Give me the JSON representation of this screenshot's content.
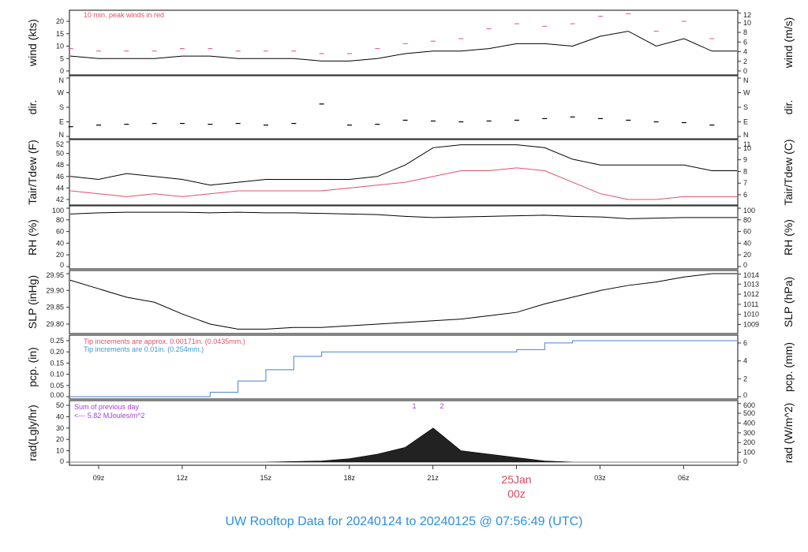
{
  "title": "UW Rooftop Data for 20240124  to  20240125 @ 07:56:49  (UTC)",
  "colors": {
    "title": "#2b8fe0",
    "date_marker": "#d9475e",
    "peak": "#e0506a",
    "dew": "#e0506a",
    "pcp_line": "#4a7fd0",
    "pcp_note2": "#3a9ae0",
    "rad_note": "#a040e0",
    "line": "#000000"
  },
  "x_axis": {
    "ticks": [
      "09z",
      "12z",
      "15z",
      "18z",
      "21z",
      "00z",
      "03z",
      "06z"
    ],
    "date_marker": {
      "day": "25Jan",
      "hour": "00z"
    }
  },
  "chart_data": [
    {
      "type": "line",
      "panel": "wind",
      "ylabel": "wind (kts)",
      "ylabel_right": "wind (m/s)",
      "ylim": [
        0,
        20
      ],
      "yticks": [
        "0",
        "5",
        "10",
        "15",
        "20"
      ],
      "yticks_right": [
        "0",
        "2",
        "4",
        "6",
        "8",
        "10",
        "12"
      ],
      "annotation": "10 min. peak winds in red",
      "x": [
        "08z",
        "09z",
        "10z",
        "11z",
        "12z",
        "13z",
        "14z",
        "15z",
        "16z",
        "17z",
        "18z",
        "19z",
        "20z",
        "21z",
        "22z",
        "23z",
        "00z",
        "01z",
        "02z",
        "03z",
        "04z",
        "05z",
        "06z",
        "07z"
      ],
      "series": [
        {
          "values": [
            6,
            5,
            5,
            5,
            6,
            6,
            5,
            5,
            5,
            4,
            4,
            5,
            7,
            8,
            8,
            9,
            11,
            11,
            10,
            14,
            16,
            10,
            13,
            8
          ]
        },
        {
          "values": [
            9,
            8,
            8,
            8,
            9,
            9,
            8,
            8,
            8,
            7,
            7,
            9,
            11,
            12,
            13,
            17,
            19,
            18,
            19,
            22,
            23,
            16,
            20,
            13
          ]
        }
      ]
    },
    {
      "type": "scatter",
      "panel": "dir",
      "ylabel": "dir.",
      "ylabel_right": "dir.",
      "ylim": [
        0,
        360
      ],
      "yticks": [
        "N",
        "E",
        "S",
        "W",
        "N"
      ],
      "x": [
        "08z",
        "09z",
        "10z",
        "11z",
        "12z",
        "13z",
        "14z",
        "15z",
        "16z",
        "17z",
        "18z",
        "19z",
        "20z",
        "21z",
        "22z",
        "23z",
        "00z",
        "01z",
        "02z",
        "03z",
        "04z",
        "05z",
        "06z",
        "07z"
      ],
      "values": [
        60,
        70,
        75,
        80,
        80,
        75,
        80,
        70,
        80,
        200,
        70,
        75,
        100,
        95,
        90,
        95,
        100,
        110,
        120,
        110,
        100,
        90,
        85,
        70
      ]
    },
    {
      "type": "line",
      "panel": "temperature",
      "ylabel": "Tair/Tdew (F)",
      "ylabel_right": "Tair/Tdew (C)",
      "ylim": [
        42,
        52
      ],
      "yticks": [
        "42",
        "44",
        "46",
        "48",
        "50",
        "52"
      ],
      "yticks_right": [
        "6",
        "7",
        "8",
        "9",
        "10",
        "11"
      ],
      "x": [
        "08z",
        "09z",
        "10z",
        "11z",
        "12z",
        "13z",
        "14z",
        "15z",
        "16z",
        "17z",
        "18z",
        "19z",
        "20z",
        "21z",
        "22z",
        "23z",
        "00z",
        "01z",
        "02z",
        "03z",
        "04z",
        "05z",
        "06z",
        "07z"
      ],
      "series": [
        {
          "values": [
            46,
            45.5,
            46.5,
            46,
            45.5,
            44.5,
            45,
            45.5,
            45.5,
            45.5,
            45.5,
            46,
            48,
            51,
            51.5,
            51.5,
            51.5,
            51,
            49,
            48,
            48,
            48,
            48,
            47
          ]
        },
        {
          "values": [
            43.5,
            43,
            42.5,
            43,
            42.5,
            43,
            43.5,
            43.5,
            43.5,
            43.5,
            44,
            44.5,
            45,
            46,
            47,
            47,
            47.5,
            47,
            45,
            43,
            42,
            42,
            42.5,
            42.5
          ]
        }
      ]
    },
    {
      "type": "line",
      "panel": "rh",
      "ylabel": "RH (%)",
      "ylabel_right": "RH (%)",
      "ylim": [
        0,
        100
      ],
      "yticks": [
        "0",
        "20",
        "40",
        "60",
        "80",
        "100"
      ],
      "x": [
        "08z",
        "09z",
        "10z",
        "11z",
        "12z",
        "13z",
        "14z",
        "15z",
        "16z",
        "17z",
        "18z",
        "19z",
        "20z",
        "21z",
        "22z",
        "23z",
        "00z",
        "01z",
        "02z",
        "03z",
        "04z",
        "05z",
        "06z",
        "07z"
      ],
      "values": [
        90,
        92,
        93,
        93,
        93,
        92,
        93,
        92,
        92,
        91,
        90,
        89,
        86,
        84,
        85,
        86,
        87,
        88,
        86,
        85,
        82,
        83,
        84,
        84
      ]
    },
    {
      "type": "line",
      "panel": "slp",
      "ylabel": "SLP (inHg)",
      "ylabel_right": "SLP (hPa)",
      "ylim": [
        29.8,
        29.95
      ],
      "yticks": [
        "29.80",
        "29.85",
        "29.90",
        "29.95"
      ],
      "yticks_right": [
        "1009",
        "1010",
        "1011",
        "1012",
        "1013",
        "1014"
      ],
      "x": [
        "08z",
        "09z",
        "10z",
        "11z",
        "12z",
        "13z",
        "14z",
        "15z",
        "16z",
        "17z",
        "18z",
        "19z",
        "20z",
        "21z",
        "22z",
        "23z",
        "00z",
        "01z",
        "02z",
        "03z",
        "04z",
        "05z",
        "06z",
        "07z"
      ],
      "values": [
        29.93,
        29.905,
        29.88,
        29.865,
        29.83,
        29.8,
        29.785,
        29.785,
        29.79,
        29.79,
        29.795,
        29.8,
        29.805,
        29.81,
        29.815,
        29.825,
        29.835,
        29.86,
        29.88,
        29.9,
        29.915,
        29.925,
        29.94,
        29.95
      ]
    },
    {
      "type": "line",
      "panel": "precip",
      "ylabel": "pcp. (in)",
      "ylabel_right": "pcp. (mm)",
      "ylim": [
        0,
        0.25
      ],
      "yticks": [
        "0.00",
        "0.05",
        "0.10",
        "0.15",
        "0.20",
        "0.25"
      ],
      "yticks_right": [
        "0",
        "2",
        "4",
        "6"
      ],
      "notes": [
        "Tip increments are approx. 0.00171in. (0.0435mm.)",
        "Tip increments are 0.01in. (0.254mm.)"
      ],
      "x": [
        "08z",
        "09z",
        "10z",
        "11z",
        "12z",
        "13z",
        "14z",
        "15z",
        "16z",
        "17z",
        "18z",
        "19z",
        "20z",
        "21z",
        "22z",
        "23z",
        "00z",
        "01z",
        "02z",
        "03z",
        "04z",
        "05z",
        "06z",
        "07z"
      ],
      "values": [
        0,
        0,
        0,
        0,
        0,
        0.02,
        0.07,
        0.12,
        0.18,
        0.2,
        0.2,
        0.2,
        0.2,
        0.2,
        0.2,
        0.2,
        0.21,
        0.24,
        0.25,
        0.25,
        0.25,
        0.25,
        0.25,
        0.25
      ]
    },
    {
      "type": "area",
      "panel": "radiation",
      "ylabel": "rad(Lgly/hr)",
      "ylabel_right": "rad (W/m^2)",
      "ylim": [
        0,
        50
      ],
      "yticks": [
        "0",
        "10",
        "20",
        "30",
        "40",
        "50"
      ],
      "yticks_right": [
        "0",
        "100",
        "200",
        "300",
        "400",
        "500",
        "600"
      ],
      "notes": [
        "Sum of previous day",
        "<--- 5.82 MJoules/m^2"
      ],
      "markers": [
        "1",
        "2"
      ],
      "x": [
        "08z",
        "09z",
        "10z",
        "11z",
        "12z",
        "13z",
        "14z",
        "15z",
        "16z",
        "17z",
        "18z",
        "19z",
        "20z",
        "21z",
        "22z",
        "23z",
        "00z",
        "01z",
        "02z",
        "03z",
        "04z",
        "05z",
        "06z",
        "07z"
      ],
      "values": [
        0,
        0,
        0,
        0,
        0,
        0,
        0,
        0,
        0.5,
        1,
        3,
        7,
        13,
        30,
        10,
        7,
        4,
        1,
        0,
        0,
        0,
        0,
        0,
        0
      ]
    }
  ]
}
